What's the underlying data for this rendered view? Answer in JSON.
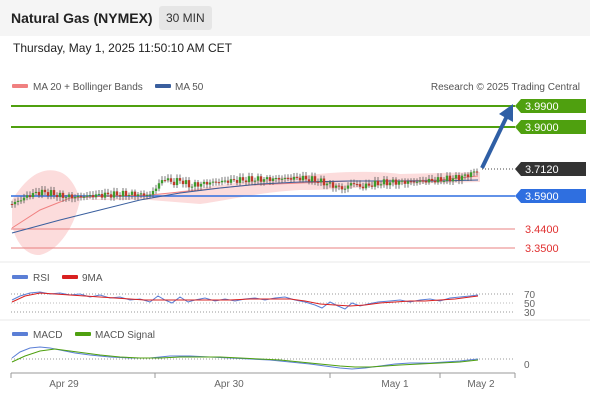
{
  "header": {
    "title": "Natural Gas (NYMEX)",
    "interval": "30 MIN",
    "timestamp": "Thursday, May 1, 2025 11:50:10 AM CET"
  },
  "legend": {
    "ma20": "MA 20 + Bollinger Bands",
    "ma50": "MA 50",
    "credit": "Research © 2025 Trading Central",
    "ma20_color": "#f08080",
    "ma50_color": "#3a5f9e"
  },
  "price_levels": [
    {
      "label": "3.9900",
      "kind": "resistance",
      "color": "#4fa00f"
    },
    {
      "label": "3.9000",
      "kind": "resistance",
      "color": "#4fa00f"
    },
    {
      "label": "3.7120",
      "kind": "last",
      "color": "#333333"
    },
    {
      "label": "3.5900",
      "kind": "pivot",
      "color": "#2f6fe0"
    },
    {
      "label": "3.4400",
      "kind": "support",
      "color": "#e05050"
    },
    {
      "label": "3.3500",
      "kind": "support",
      "color": "#e05050"
    }
  ],
  "rsi_panel": {
    "legend_rsi": "RSI",
    "legend_ma": "9MA",
    "rsi_color": "#5b7fd6",
    "ma_color": "#d92020",
    "levels": [
      "70",
      "50",
      "30"
    ]
  },
  "macd_panel": {
    "legend_macd": "MACD",
    "legend_signal": "MACD Signal",
    "macd_color": "#5b7fd6",
    "signal_color": "#4fa00f",
    "zero_label": "0"
  },
  "x_axis": {
    "labels": [
      "Apr 29",
      "Apr 30",
      "May 1",
      "May 2"
    ]
  }
}
